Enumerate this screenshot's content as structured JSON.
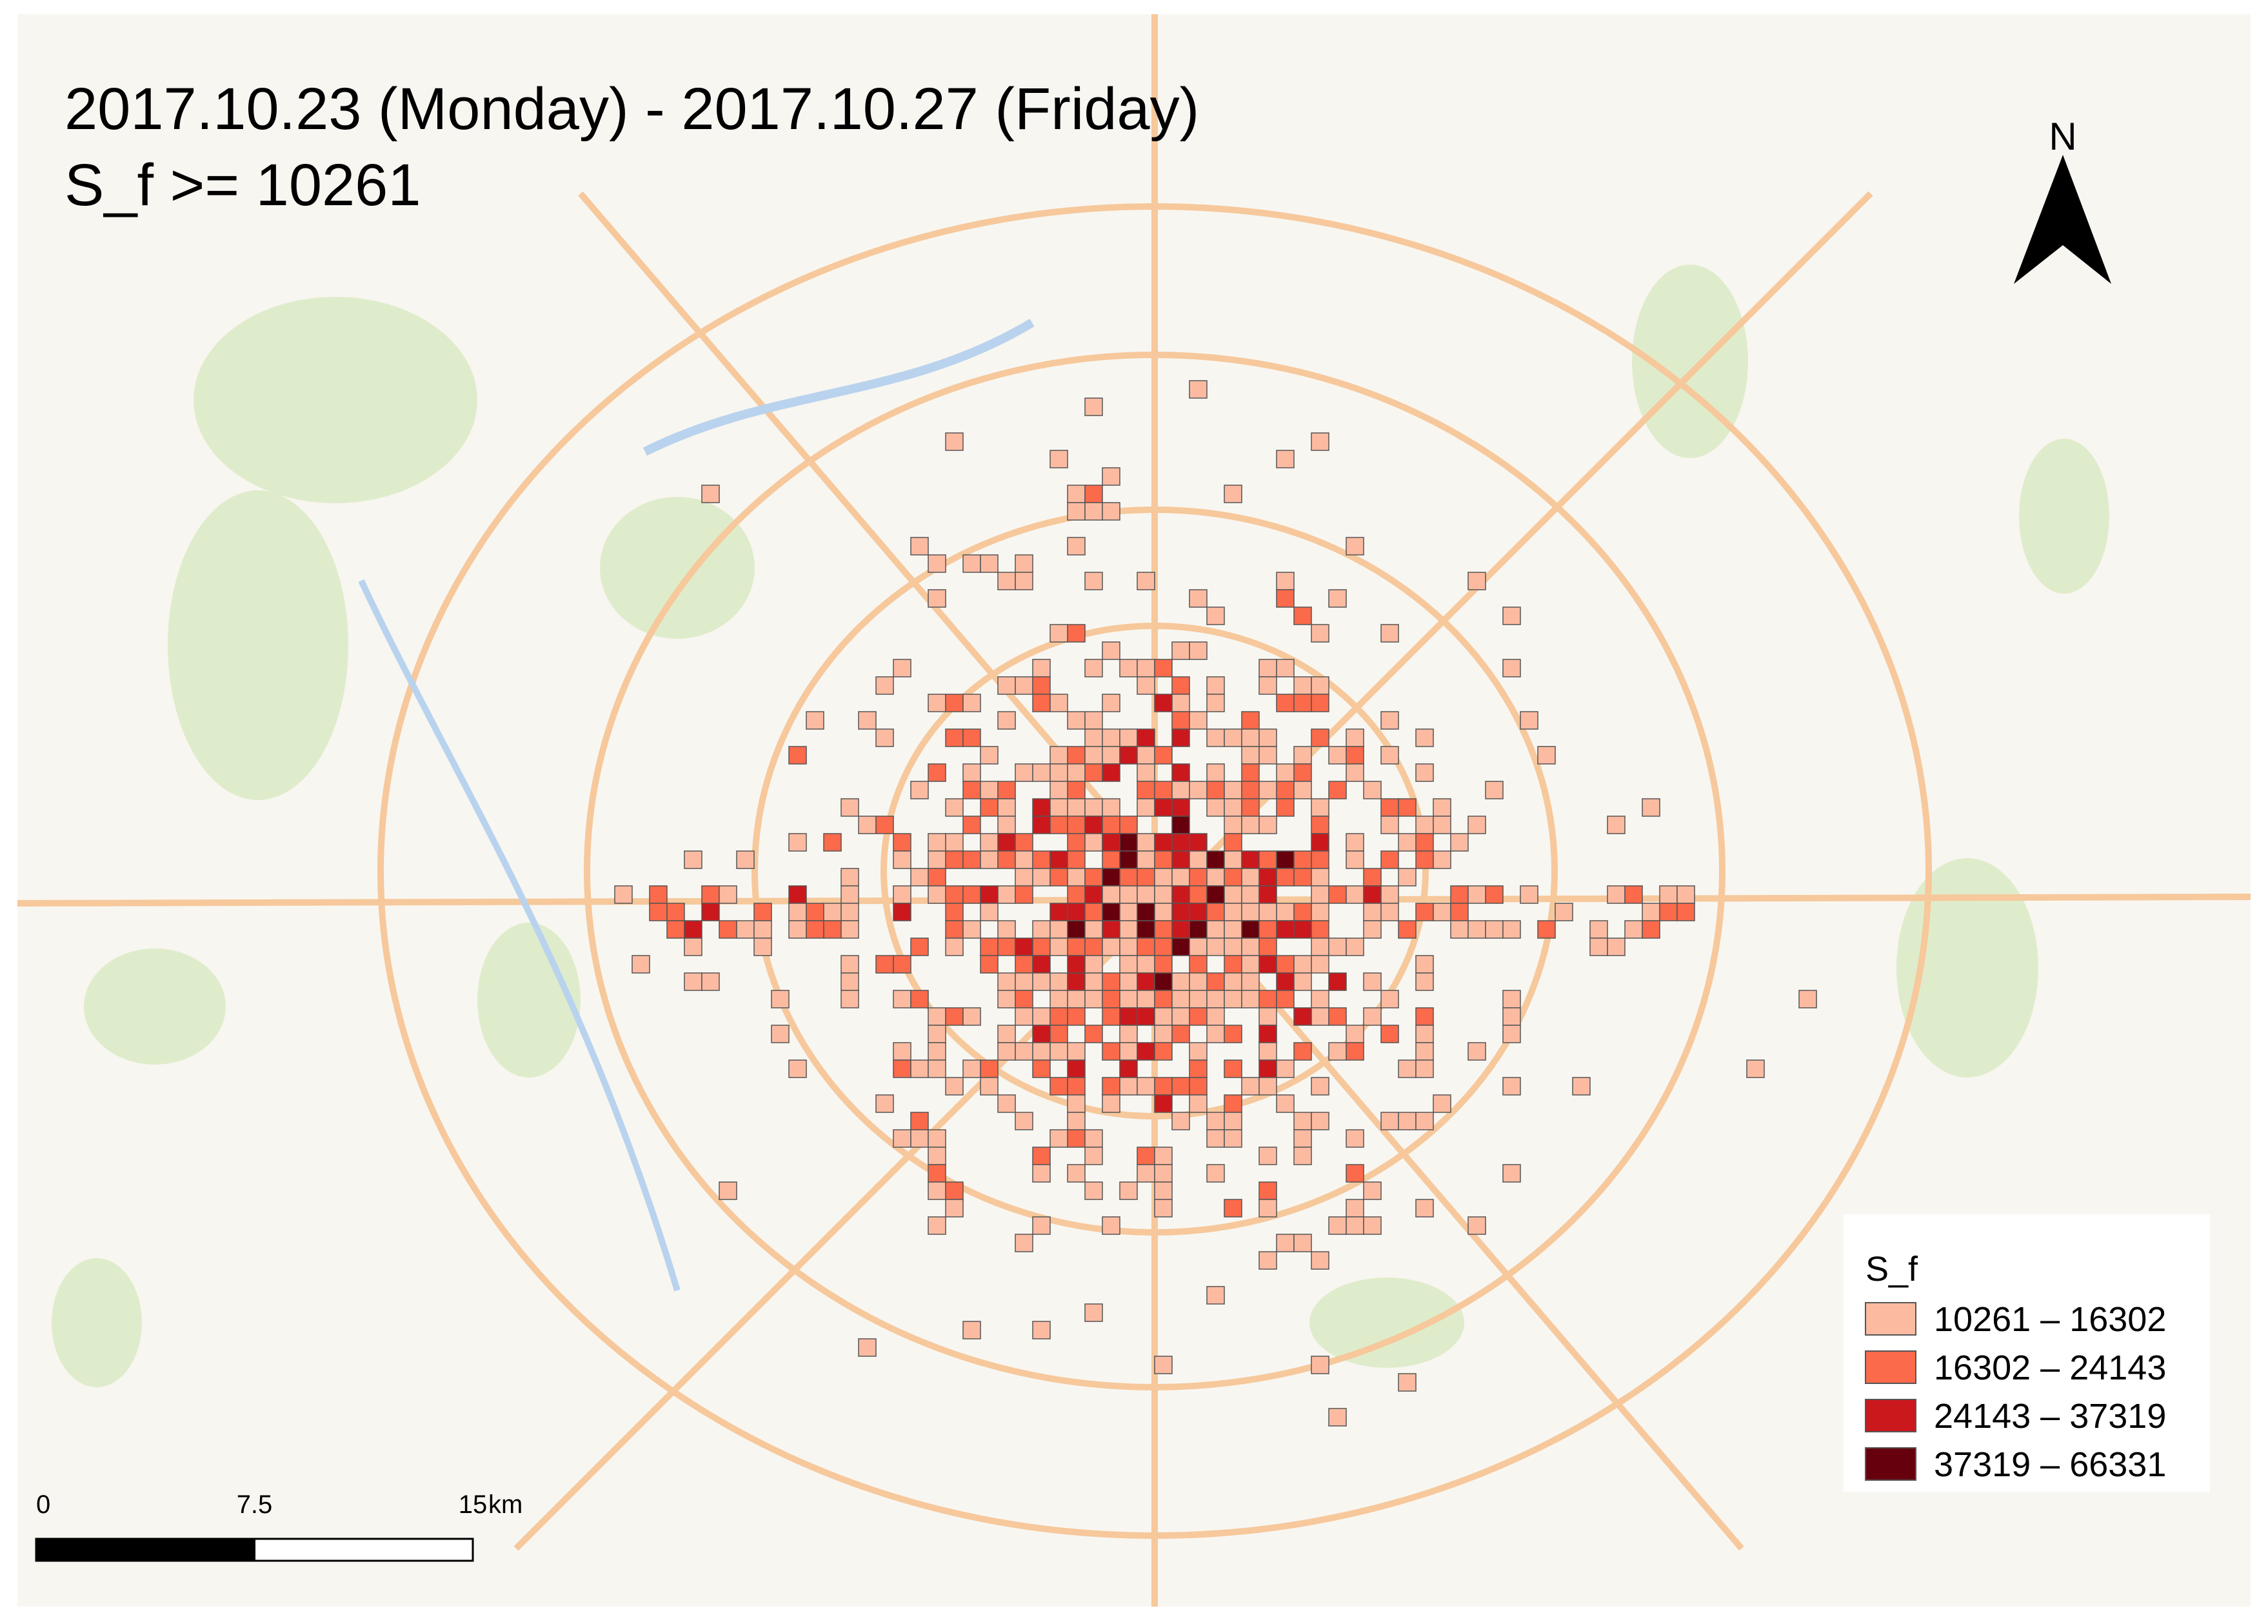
{
  "map": {
    "title_lines": [
      "2017.10.23 (Monday) - 2017.10.27 (Friday)",
      "S_f >= 10261"
    ],
    "north_label": "N",
    "legend": {
      "title": "S_f",
      "items": [
        {
          "label": "10261 – 16302",
          "color": "#fcbba1"
        },
        {
          "label": "16302 – 24143",
          "color": "#fb6a4a"
        },
        {
          "label": "24143 – 37319",
          "color": "#cb181d"
        },
        {
          "label": "37319 – 66331",
          "color": "#67000d"
        }
      ]
    },
    "scale_bar": {
      "ticks": [
        0,
        7.5,
        15
      ],
      "unit": "km"
    }
  }
}
